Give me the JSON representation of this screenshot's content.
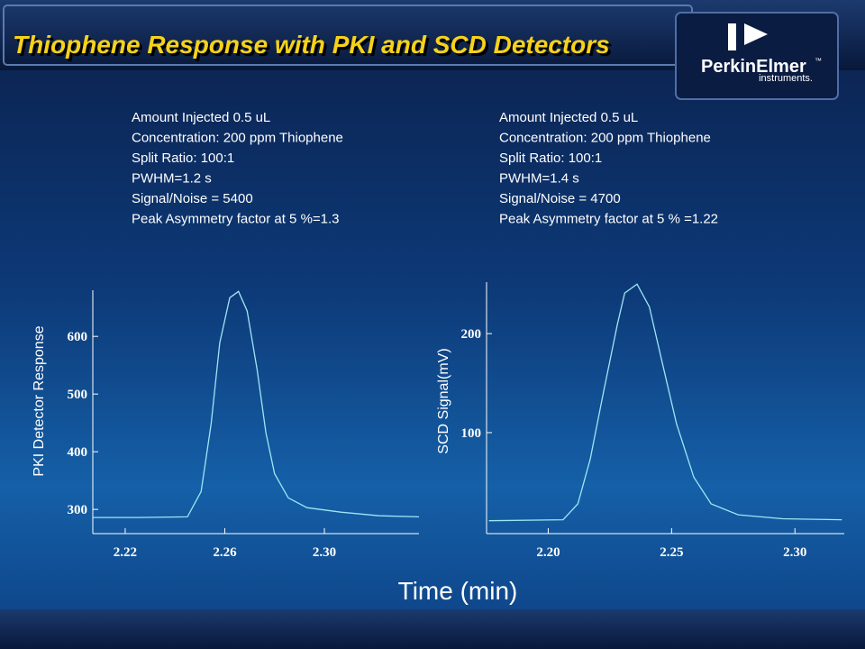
{
  "title": "Thiophene Response with PKI and SCD Detectors",
  "logo": {
    "name": "PerkinElmer",
    "tm": "™",
    "sub": "instruments."
  },
  "x_label": "Time (min)",
  "chart_data": [
    {
      "type": "line",
      "ylabel": "PKI Detector Response",
      "annotations": [
        "Amount Injected 0.5 uL",
        "Concentration: 200 ppm Thiophene",
        "Split Ratio: 100:1",
        "PWHM=1.2 s",
        "Signal/Noise = 5400",
        "Peak Asymmetry factor at 5 %=1.3"
      ],
      "x": [
        2.207,
        2.225,
        2.245,
        2.2505,
        2.2545,
        2.258,
        2.262,
        2.2655,
        2.269,
        2.273,
        2.2765,
        2.28,
        2.2855,
        2.293,
        2.307,
        2.322,
        2.338
      ],
      "series": [
        {
          "color": "#9fe6f5",
          "values": [
            286,
            286,
            287,
            331,
            448,
            589,
            667,
            678,
            644,
            542,
            433,
            362,
            320,
            303,
            295,
            289,
            287
          ]
        }
      ],
      "xlim": [
        2.207,
        2.338
      ],
      "ylim": [
        258,
        680
      ],
      "xticks": [
        2.22,
        2.26,
        {
          "value": 2.3,
          "label": "2.30"
        }
      ],
      "yticks": [
        300,
        400,
        500,
        600
      ]
    },
    {
      "type": "line",
      "ylabel": "SCD Signal(mV)",
      "annotations": [
        "Amount Injected 0.5 uL",
        "Concentration: 200 ppm Thiophene",
        "Split Ratio: 100:1",
        "PWHM=1.4 s",
        "Signal/Noise = 4700",
        "Peak Asymmetry factor at 5 % =1.22"
      ],
      "x": [
        2.176,
        2.206,
        2.212,
        2.217,
        2.222,
        2.228,
        2.231,
        2.236,
        2.241,
        2.246,
        2.252,
        2.259,
        2.266,
        2.277,
        2.295,
        2.319
      ],
      "series": [
        {
          "color": "#9fe6f5",
          "values": [
            11,
            12,
            28,
            73,
            136,
            209,
            241,
            250,
            227,
            173,
            109,
            55,
            28,
            17,
            13,
            12
          ]
        }
      ],
      "xlim": [
        2.175,
        2.32
      ],
      "ylim": [
        -2,
        252
      ],
      "xticks": [
        {
          "value": 2.2,
          "label": "2.20"
        },
        2.25,
        {
          "value": 2.3,
          "label": "2.30"
        }
      ],
      "yticks": [
        100,
        200
      ]
    }
  ]
}
